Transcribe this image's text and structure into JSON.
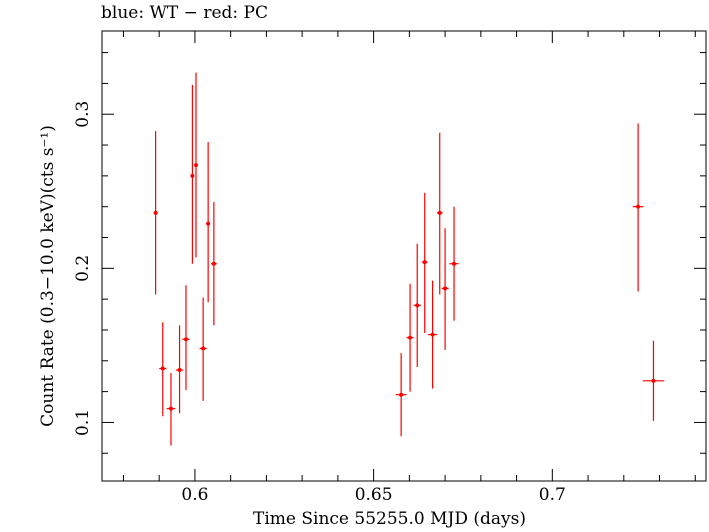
{
  "chart_data": {
    "type": "scatter",
    "title": "blue: WT − red: PC",
    "xlabel": "Time Since 55255.0 MJD (days)",
    "ylabel": "Count Rate (0.3−10.0 keV)(cts s⁻¹)",
    "xlim": [
      0.574,
      0.743
    ],
    "ylim": [
      0.062,
      0.354
    ],
    "xticks": [
      0.6,
      0.65,
      0.7
    ],
    "xtick_labels": [
      "0.6",
      "0.65",
      "0.7"
    ],
    "yticks": [
      0.1,
      0.2,
      0.3
    ],
    "ytick_labels": [
      "0.1",
      "0.2",
      "0.3"
    ],
    "grid": false,
    "series": [
      {
        "color": "#ff0000",
        "points": [
          {
            "x": 0.589,
            "y": 0.236,
            "xerr": 0.0005,
            "ylo": 0.183,
            "yhi": 0.289
          },
          {
            "x": 0.591,
            "y": 0.135,
            "xerr": 0.001,
            "ylo": 0.104,
            "yhi": 0.165
          },
          {
            "x": 0.5933,
            "y": 0.109,
            "xerr": 0.0012,
            "ylo": 0.085,
            "yhi": 0.132
          },
          {
            "x": 0.5957,
            "y": 0.134,
            "xerr": 0.001,
            "ylo": 0.106,
            "yhi": 0.163
          },
          {
            "x": 0.5975,
            "y": 0.154,
            "xerr": 0.001,
            "ylo": 0.121,
            "yhi": 0.189
          },
          {
            "x": 0.5993,
            "y": 0.26,
            "xerr": 0.0005,
            "ylo": 0.203,
            "yhi": 0.319
          },
          {
            "x": 0.6003,
            "y": 0.267,
            "xerr": 0.0005,
            "ylo": 0.207,
            "yhi": 0.327
          },
          {
            "x": 0.6023,
            "y": 0.148,
            "xerr": 0.001,
            "ylo": 0.114,
            "yhi": 0.181
          },
          {
            "x": 0.6037,
            "y": 0.229,
            "xerr": 0.0005,
            "ylo": 0.178,
            "yhi": 0.282
          },
          {
            "x": 0.6053,
            "y": 0.203,
            "xerr": 0.0008,
            "ylo": 0.163,
            "yhi": 0.243
          },
          {
            "x": 0.6577,
            "y": 0.118,
            "xerr": 0.0015,
            "ylo": 0.091,
            "yhi": 0.145
          },
          {
            "x": 0.6602,
            "y": 0.155,
            "xerr": 0.001,
            "ylo": 0.12,
            "yhi": 0.19
          },
          {
            "x": 0.6622,
            "y": 0.176,
            "xerr": 0.001,
            "ylo": 0.136,
            "yhi": 0.216
          },
          {
            "x": 0.6643,
            "y": 0.204,
            "xerr": 0.0008,
            "ylo": 0.158,
            "yhi": 0.249
          },
          {
            "x": 0.6665,
            "y": 0.157,
            "xerr": 0.0013,
            "ylo": 0.122,
            "yhi": 0.192
          },
          {
            "x": 0.6685,
            "y": 0.236,
            "xerr": 0.0008,
            "ylo": 0.183,
            "yhi": 0.288
          },
          {
            "x": 0.67,
            "y": 0.187,
            "xerr": 0.001,
            "ylo": 0.147,
            "yhi": 0.226
          },
          {
            "x": 0.6725,
            "y": 0.203,
            "xerr": 0.0013,
            "ylo": 0.166,
            "yhi": 0.24
          },
          {
            "x": 0.724,
            "y": 0.24,
            "xerr": 0.0015,
            "ylo": 0.185,
            "yhi": 0.294
          },
          {
            "x": 0.7283,
            "y": 0.127,
            "xerr": 0.003,
            "ylo": 0.101,
            "yhi": 0.153
          }
        ]
      }
    ]
  }
}
